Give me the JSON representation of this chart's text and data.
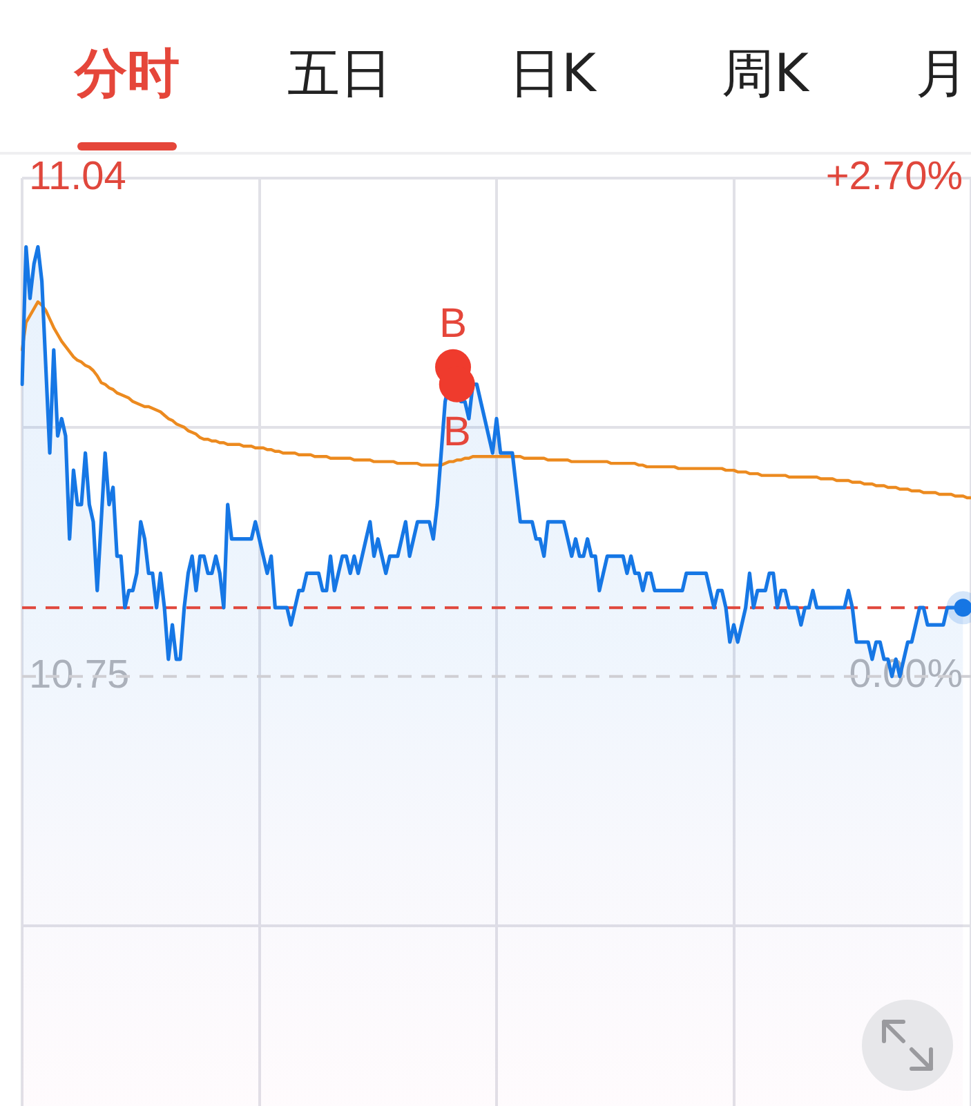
{
  "chart_data": {
    "type": "area",
    "categories": [
      null,
      null,
      null,
      null,
      null,
      null,
      null,
      null,
      null,
      null,
      null,
      null,
      null,
      null,
      null,
      null,
      null,
      null,
      null,
      null,
      null,
      null,
      null,
      null,
      null,
      null,
      null,
      null,
      null,
      null,
      null,
      null,
      null,
      null,
      null,
      null,
      null,
      null,
      null,
      null,
      null,
      null,
      null,
      null,
      null,
      null,
      null,
      null,
      null,
      null,
      null,
      null,
      null,
      null,
      null,
      null,
      null,
      null,
      null,
      null,
      null,
      null,
      null,
      null,
      null,
      null,
      null,
      null,
      null,
      null,
      null,
      null,
      null,
      null,
      null,
      null,
      null,
      null,
      null,
      null,
      null,
      null,
      null,
      null,
      null,
      null,
      null,
      null,
      null,
      null,
      null,
      null,
      null,
      null,
      null,
      null,
      null,
      null,
      null,
      null,
      null,
      null,
      null,
      null,
      null,
      null,
      null,
      null,
      null,
      null,
      null,
      null,
      null,
      null,
      null,
      null,
      null,
      null,
      null,
      null,
      null,
      null,
      null,
      null,
      null,
      null,
      null,
      null,
      null,
      null,
      null,
      null,
      null,
      null,
      null,
      null,
      null,
      null,
      null,
      null,
      null,
      null,
      null,
      null,
      null,
      null,
      null,
      null,
      null,
      null,
      null,
      null,
      null,
      null,
      null,
      null,
      null,
      null,
      null,
      null,
      null,
      null,
      null,
      null,
      null,
      null,
      null,
      null,
      null,
      null,
      null,
      null,
      null,
      null,
      null,
      null,
      null,
      null,
      null,
      null,
      null,
      null,
      null,
      null,
      null,
      null,
      null,
      null,
      null,
      null,
      null,
      null,
      null,
      null,
      null,
      null,
      null,
      null,
      null,
      null,
      null,
      null,
      null,
      null,
      null,
      null,
      null,
      null,
      null,
      null,
      null,
      null,
      null,
      null,
      null,
      null,
      null,
      null,
      null,
      null,
      null,
      null,
      null,
      null,
      null,
      null,
      null,
      null,
      null,
      null,
      null,
      null,
      null,
      null,
      null,
      null,
      null,
      null,
      null,
      null,
      null
    ],
    "series": [
      {
        "type": "area",
        "color": "#1677e5",
        "values": [
          10.92,
          11.0,
          10.97,
          10.99,
          11.0,
          10.98,
          10.93,
          10.88,
          10.94,
          10.89,
          10.9,
          10.89,
          10.83,
          10.87,
          10.85,
          10.85,
          10.88,
          10.85,
          10.84,
          10.8,
          10.84,
          10.88,
          10.85,
          10.86,
          10.82,
          10.82,
          10.79,
          10.8,
          10.8,
          10.81,
          10.84,
          10.83,
          10.81,
          10.81,
          10.79,
          10.81,
          10.79,
          10.76,
          10.78,
          10.76,
          10.76,
          10.79,
          10.81,
          10.82,
          10.8,
          10.82,
          10.82,
          10.81,
          10.81,
          10.82,
          10.81,
          10.79,
          10.85,
          10.83,
          10.83,
          10.83,
          10.83,
          10.83,
          10.83,
          10.84,
          10.83,
          10.82,
          10.81,
          10.82,
          10.79,
          10.79,
          10.79,
          10.79,
          10.78,
          10.79,
          10.8,
          10.8,
          10.81,
          10.81,
          10.81,
          10.81,
          10.8,
          10.8,
          10.82,
          10.8,
          10.81,
          10.82,
          10.82,
          10.81,
          10.82,
          10.81,
          10.82,
          10.83,
          10.84,
          10.82,
          10.83,
          10.82,
          10.81,
          10.82,
          10.82,
          10.82,
          10.83,
          10.84,
          10.82,
          10.83,
          10.84,
          10.84,
          10.84,
          10.84,
          10.83,
          10.85,
          10.88,
          10.91,
          10.92,
          10.93,
          10.92,
          10.91,
          10.91,
          10.9,
          10.92,
          10.92,
          10.91,
          10.9,
          10.89,
          10.88,
          10.9,
          10.88,
          10.88,
          10.88,
          10.88,
          10.86,
          10.84,
          10.84,
          10.84,
          10.84,
          10.83,
          10.83,
          10.82,
          10.84,
          10.84,
          10.84,
          10.84,
          10.84,
          10.83,
          10.82,
          10.83,
          10.82,
          10.82,
          10.83,
          10.82,
          10.82,
          10.8,
          10.81,
          10.82,
          10.82,
          10.82,
          10.82,
          10.82,
          10.81,
          10.82,
          10.81,
          10.81,
          10.8,
          10.81,
          10.81,
          10.8,
          10.8,
          10.8,
          10.8,
          10.8,
          10.8,
          10.8,
          10.8,
          10.81,
          10.81,
          10.81,
          10.81,
          10.81,
          10.81,
          10.8,
          10.79,
          10.8,
          10.8,
          10.79,
          10.77,
          10.78,
          10.77,
          10.78,
          10.79,
          10.81,
          10.79,
          10.8,
          10.8,
          10.8,
          10.81,
          10.81,
          10.79,
          10.8,
          10.8,
          10.79,
          10.79,
          10.79,
          10.78,
          10.79,
          10.79,
          10.8,
          10.79,
          10.79,
          10.79,
          10.79,
          10.79,
          10.79,
          10.79,
          10.79,
          10.8,
          10.79,
          10.77,
          10.77,
          10.77,
          10.77,
          10.76,
          10.77,
          10.77,
          10.76,
          10.76,
          10.75,
          10.76,
          10.75,
          10.76,
          10.77,
          10.77,
          10.78,
          10.79,
          10.79,
          10.78,
          10.78,
          10.78,
          10.78,
          10.78,
          10.79,
          10.79,
          10.79,
          10.79,
          10.79,
          null,
          null
        ]
      },
      {
        "type": "line",
        "color": "#ec8a1f",
        "values": [
          10.94,
          10.956,
          10.96,
          10.964,
          10.968,
          10.966,
          10.963,
          10.958,
          10.953,
          10.949,
          10.945,
          10.942,
          10.939,
          10.936,
          10.934,
          10.933,
          10.931,
          10.93,
          10.928,
          10.925,
          10.921,
          10.92,
          10.918,
          10.917,
          10.915,
          10.914,
          10.913,
          10.912,
          10.91,
          10.909,
          10.908,
          10.907,
          10.907,
          10.906,
          10.905,
          10.904,
          10.902,
          10.9,
          10.899,
          10.897,
          10.896,
          10.895,
          10.893,
          10.892,
          10.891,
          10.889,
          10.888,
          10.888,
          10.887,
          10.887,
          10.886,
          10.886,
          10.885,
          10.885,
          10.885,
          10.885,
          10.884,
          10.884,
          10.884,
          10.883,
          10.883,
          10.883,
          10.882,
          10.882,
          10.881,
          10.881,
          10.88,
          10.88,
          10.88,
          10.88,
          10.879,
          10.879,
          10.879,
          10.879,
          10.878,
          10.878,
          10.878,
          10.878,
          10.877,
          10.877,
          10.877,
          10.877,
          10.877,
          10.877,
          10.876,
          10.876,
          10.876,
          10.876,
          10.876,
          10.875,
          10.875,
          10.875,
          10.875,
          10.875,
          10.875,
          10.874,
          10.874,
          10.874,
          10.874,
          10.874,
          10.874,
          10.873,
          10.873,
          10.873,
          10.873,
          10.873,
          10.873,
          10.874,
          10.875,
          10.875,
          10.876,
          10.876,
          10.877,
          10.877,
          10.878,
          10.878,
          10.878,
          10.878,
          10.878,
          10.878,
          10.878,
          10.878,
          10.878,
          10.878,
          10.878,
          10.878,
          10.878,
          10.877,
          10.877,
          10.877,
          10.877,
          10.877,
          10.877,
          10.876,
          10.876,
          10.876,
          10.876,
          10.876,
          10.876,
          10.875,
          10.875,
          10.875,
          10.875,
          10.875,
          10.875,
          10.875,
          10.875,
          10.875,
          10.875,
          10.874,
          10.874,
          10.874,
          10.874,
          10.874,
          10.874,
          10.874,
          10.873,
          10.873,
          10.872,
          10.872,
          10.872,
          10.872,
          10.872,
          10.872,
          10.872,
          10.872,
          10.871,
          10.871,
          10.871,
          10.871,
          10.871,
          10.871,
          10.871,
          10.871,
          10.871,
          10.871,
          10.871,
          10.871,
          10.87,
          10.87,
          10.87,
          10.869,
          10.869,
          10.869,
          10.868,
          10.868,
          10.868,
          10.867,
          10.867,
          10.867,
          10.867,
          10.867,
          10.867,
          10.867,
          10.866,
          10.866,
          10.866,
          10.866,
          10.866,
          10.866,
          10.866,
          10.866,
          10.865,
          10.865,
          10.865,
          10.865,
          10.864,
          10.864,
          10.864,
          10.864,
          10.863,
          10.863,
          10.863,
          10.862,
          10.862,
          10.862,
          10.861,
          10.861,
          10.861,
          10.86,
          10.86,
          10.86,
          10.859,
          10.859,
          10.859,
          10.858,
          10.858,
          10.858,
          10.857,
          10.857,
          10.857,
          10.857,
          10.856,
          10.856,
          10.856,
          10.856,
          10.855,
          10.855,
          10.855,
          10.854,
          10.854
        ]
      },
      {
        "type": "scatter",
        "color": "#ef3b2d",
        "marker": "circle",
        "values": [
          null,
          null,
          null,
          null,
          null,
          null,
          null,
          null,
          null,
          null,
          null,
          null,
          null,
          null,
          null,
          null,
          null,
          null,
          null,
          null,
          null,
          null,
          null,
          null,
          null,
          null,
          null,
          null,
          null,
          null,
          null,
          null,
          null,
          null,
          null,
          null,
          null,
          null,
          null,
          null,
          null,
          null,
          null,
          null,
          null,
          null,
          null,
          null,
          null,
          null,
          null,
          null,
          null,
          null,
          null,
          null,
          null,
          null,
          null,
          null,
          null,
          null,
          null,
          null,
          null,
          null,
          null,
          null,
          null,
          null,
          null,
          null,
          null,
          null,
          null,
          null,
          null,
          null,
          null,
          null,
          null,
          null,
          null,
          null,
          null,
          null,
          null,
          null,
          null,
          null,
          null,
          null,
          null,
          null,
          null,
          null,
          null,
          null,
          null,
          null,
          null,
          null,
          null,
          null,
          null,
          null,
          null,
          null,
          null,
          10.93,
          10.92,
          null,
          null,
          null,
          null,
          null,
          null,
          null,
          null,
          null,
          null,
          null,
          null,
          null,
          null,
          null,
          null,
          null,
          null,
          null,
          null,
          null,
          null,
          null,
          null,
          null,
          null,
          null,
          null,
          null,
          null,
          null,
          null,
          null,
          null,
          null,
          null,
          null,
          null,
          null,
          null,
          null,
          null,
          null,
          null,
          null,
          null,
          null,
          null,
          null,
          null,
          null,
          null,
          null,
          null,
          null,
          null,
          null,
          null,
          null,
          null,
          null,
          null,
          null,
          null,
          null,
          null,
          null,
          null,
          null,
          null,
          null,
          null,
          null,
          null,
          null,
          null,
          null,
          null,
          null,
          null,
          null,
          null,
          null,
          null,
          null,
          null,
          null,
          null,
          null,
          null,
          null,
          null,
          null,
          null,
          null,
          null,
          null,
          null,
          null,
          null,
          null,
          null,
          null,
          null,
          null,
          null,
          null,
          null,
          null,
          null,
          null,
          null,
          null,
          null,
          null,
          null,
          null,
          null,
          null,
          null,
          null,
          null,
          null,
          null,
          null,
          null,
          null,
          null,
          null,
          null
        ]
      },
      {
        "type": "scatter",
        "color": "#1677e5",
        "marker": "circle",
        "values": [
          null,
          null,
          null,
          null,
          null,
          null,
          null,
          null,
          null,
          null,
          null,
          null,
          null,
          null,
          null,
          null,
          null,
          null,
          null,
          null,
          null,
          null,
          null,
          null,
          null,
          null,
          null,
          null,
          null,
          null,
          null,
          null,
          null,
          null,
          null,
          null,
          null,
          null,
          null,
          null,
          null,
          null,
          null,
          null,
          null,
          null,
          null,
          null,
          null,
          null,
          null,
          null,
          null,
          null,
          null,
          null,
          null,
          null,
          null,
          null,
          null,
          null,
          null,
          null,
          null,
          null,
          null,
          null,
          null,
          null,
          null,
          null,
          null,
          null,
          null,
          null,
          null,
          null,
          null,
          null,
          null,
          null,
          null,
          null,
          null,
          null,
          null,
          null,
          null,
          null,
          null,
          null,
          null,
          null,
          null,
          null,
          null,
          null,
          null,
          null,
          null,
          null,
          null,
          null,
          null,
          null,
          null,
          null,
          null,
          null,
          null,
          null,
          null,
          null,
          null,
          null,
          null,
          null,
          null,
          null,
          null,
          null,
          null,
          null,
          null,
          null,
          null,
          null,
          null,
          null,
          null,
          null,
          null,
          null,
          null,
          null,
          null,
          null,
          null,
          null,
          null,
          null,
          null,
          null,
          null,
          null,
          null,
          null,
          null,
          null,
          null,
          null,
          null,
          null,
          null,
          null,
          null,
          null,
          null,
          null,
          null,
          null,
          null,
          null,
          null,
          null,
          null,
          null,
          null,
          null,
          null,
          null,
          null,
          null,
          null,
          null,
          null,
          null,
          null,
          null,
          null,
          null,
          null,
          null,
          null,
          null,
          null,
          null,
          null,
          null,
          null,
          null,
          null,
          null,
          null,
          null,
          null,
          null,
          null,
          null,
          null,
          null,
          null,
          null,
          null,
          null,
          null,
          null,
          null,
          null,
          null,
          null,
          null,
          null,
          null,
          null,
          null,
          null,
          null,
          null,
          null,
          null,
          null,
          null,
          null,
          null,
          null,
          null,
          null,
          null,
          null,
          null,
          null,
          null,
          null,
          null,
          null,
          null,
          10.79,
          null,
          null
        ]
      }
    ],
    "ylim": [
      10.5,
      11.04
    ],
    "yticks": [
      11.04,
      {
        "value": 10.895,
        "label": null
      },
      10.75,
      {
        "value": 10.605,
        "label": null
      }
    ],
    "y2lim": [
      -2.33,
      2.7
    ],
    "y2ticks": [
      {
        "value": 2.7,
        "label": "+2.70%"
      },
      {
        "value": 0,
        "label": "0.00%"
      }
    ],
    "grid": true,
    "ref_lines": [
      {
        "axis": "y",
        "value": 10.75,
        "color": "#cfcfd4",
        "line_style": "dashed"
      },
      {
        "axis": "y",
        "value": 10.79,
        "color": "#e0473c",
        "line_style": "dashed"
      }
    ],
    "annotations": [
      "分时",
      "五日",
      "日K",
      "周K",
      "月",
      {
        "text": "B",
        "y": 10.93
      },
      {
        "text": "B",
        "y": 10.92
      }
    ]
  }
}
